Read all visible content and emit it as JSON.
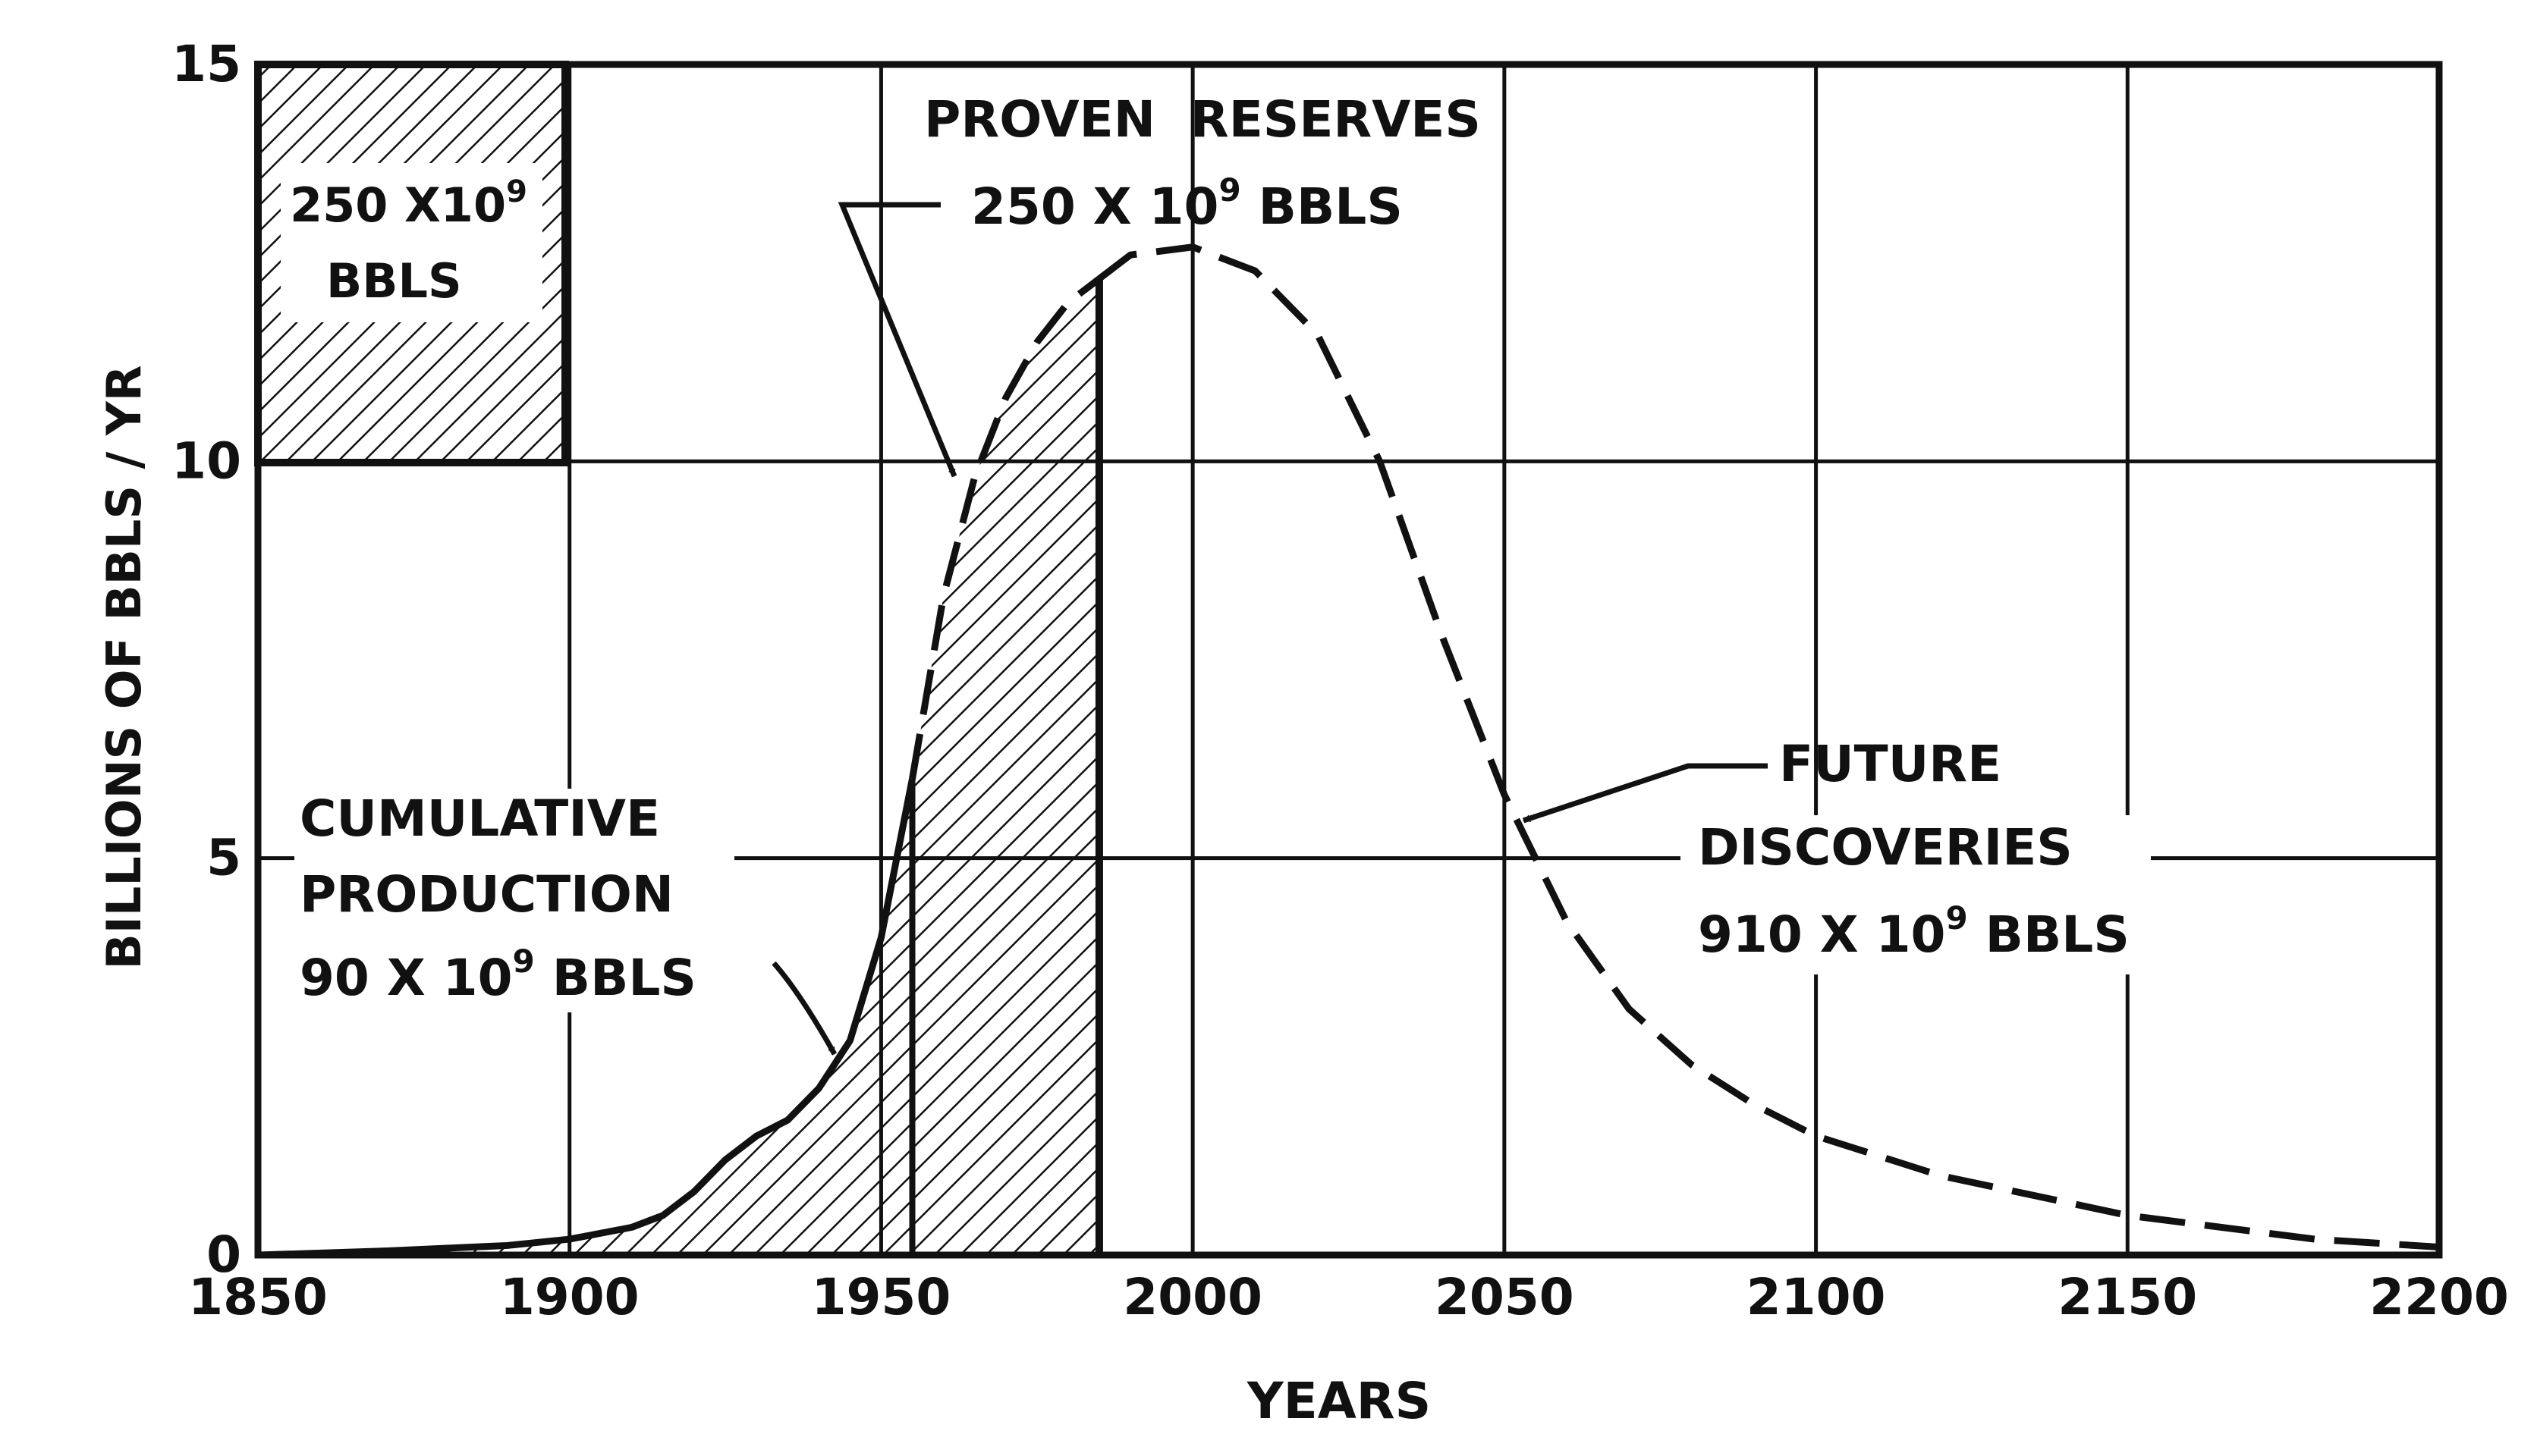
{
  "chart_data": {
    "type": "area",
    "xlabel": "YEARS",
    "ylabel": "BILLIONS OF BBLS / YR",
    "xlim": [
      1850,
      2200
    ],
    "ylim": [
      0,
      15
    ],
    "x_ticks": [
      "1850",
      "1900",
      "1950",
      "2000",
      "2050",
      "2100",
      "2150",
      "2200"
    ],
    "y_ticks": [
      "0",
      "5",
      "10",
      "15"
    ],
    "grid": true,
    "series": [
      {
        "role": "cumulative-production",
        "style": "solid",
        "x": [
          1850,
          1870,
          1890,
          1900,
          1910,
          1915,
          1920,
          1925,
          1930,
          1935,
          1940,
          1945,
          1950,
          1955
        ],
        "y": [
          0.0,
          0.05,
          0.12,
          0.2,
          0.35,
          0.5,
          0.8,
          1.2,
          1.5,
          1.7,
          2.1,
          2.7,
          4.0,
          6.0
        ]
      },
      {
        "role": "proven-reserves",
        "style": "dashed",
        "x": [
          1955,
          1960,
          1965,
          1970,
          1975,
          1980,
          1985
        ],
        "y": [
          6.0,
          8.3,
          9.8,
          10.8,
          11.5,
          12.0,
          12.3
        ]
      },
      {
        "role": "future-discoveries",
        "style": "dashed",
        "x": [
          1985,
          1990,
          2000,
          2010,
          2020,
          2030,
          2040,
          2050,
          2060,
          2070,
          2080,
          2090,
          2100,
          2120,
          2150,
          2180,
          2200
        ],
        "y": [
          12.3,
          12.6,
          12.7,
          12.4,
          11.6,
          10.0,
          7.8,
          5.8,
          4.2,
          3.1,
          2.4,
          1.9,
          1.5,
          1.0,
          0.5,
          0.2,
          0.1
        ]
      }
    ],
    "annotations": {
      "legend_box": {
        "line1": "250 X10",
        "line1_sup": "9",
        "line2": "BBLS"
      },
      "proven_reserves": {
        "line1": "PROVEN  RESERVES",
        "line2": "250 X 10",
        "line2_sup": "9",
        "line2_end": " BBLS"
      },
      "cumulative_production": {
        "line1": "CUMULATIVE",
        "line2": "PRODUCTION",
        "line3": "90 X 10",
        "line3_sup": "9",
        "line3_end": " BBLS"
      },
      "future_discoveries": {
        "line1": "FUTURE",
        "line2": "DISCOVERIES",
        "line3": "910 X 10",
        "line3_sup": "9",
        "line3_end": " BBLS"
      }
    }
  }
}
